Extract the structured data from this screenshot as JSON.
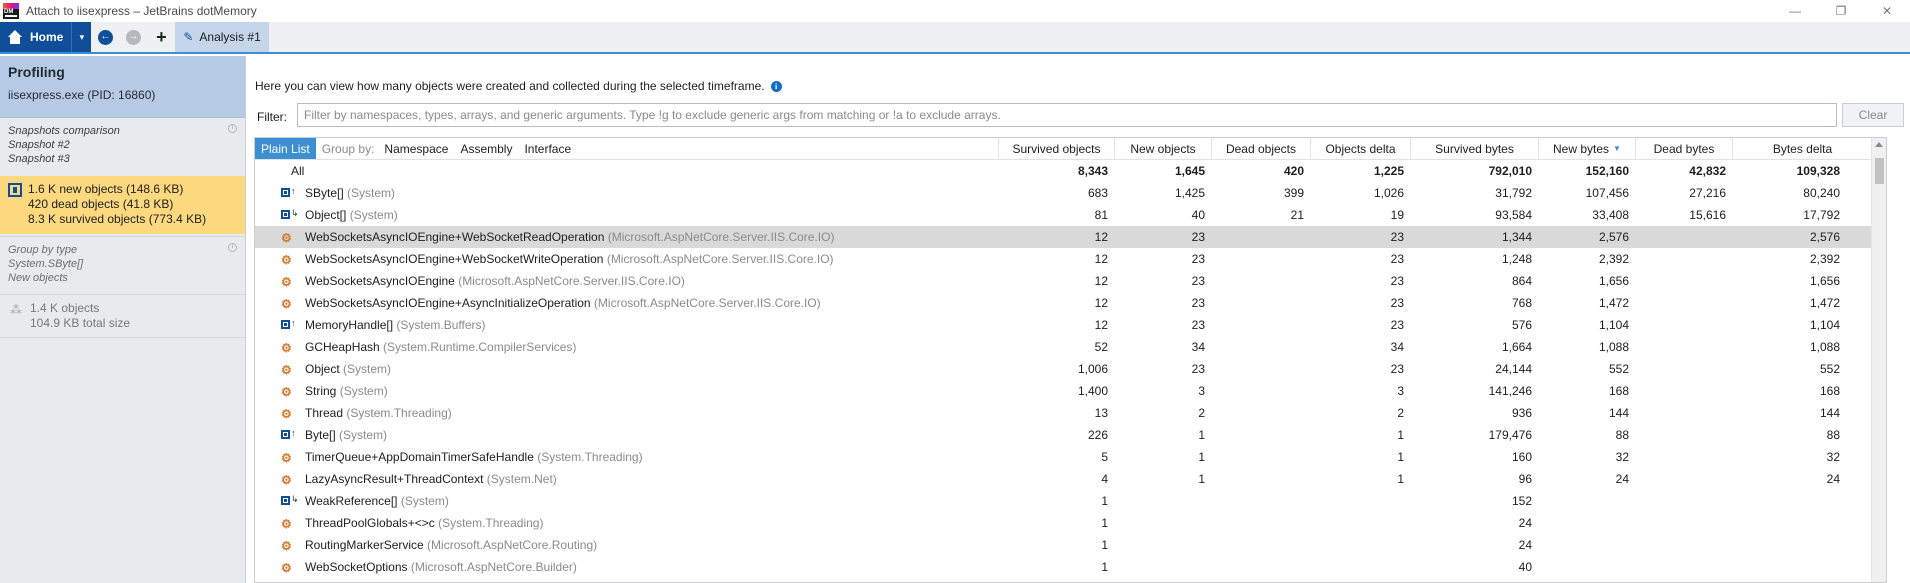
{
  "window": {
    "title": "Attach to iisexpress – JetBrains dotMemory",
    "logo_text": "DM",
    "controls": {
      "minimize": "—",
      "restore": "❐",
      "close": "✕"
    }
  },
  "toolbar": {
    "home_label": "Home",
    "dropdown_glyph": "▾",
    "back_glyph": "←",
    "forward_glyph": "→",
    "add_glyph": "+",
    "tab_label": "Analysis #1",
    "tab_icon_glyph": "✎"
  },
  "left_panel": {
    "profiling_title": "Profiling",
    "process": "iisexpress.exe (PID: 16860)",
    "comparison": [
      "Snapshots comparison",
      "Snapshot #2",
      "Snapshot #3"
    ],
    "summary": [
      "1.6 K new objects  (148.6 KB)",
      "420 dead objects  (41.8 KB)",
      "8.3 K survived objects  (773.4 KB)"
    ],
    "group_by": [
      "Group by type",
      "System.SByte[]",
      "New objects"
    ],
    "objects_count": "1.4 K  objects",
    "objects_size": "104.9 KB  total size",
    "info_glyph": "i"
  },
  "main": {
    "hint": "Here you can view how many objects were created and collected during the selected timeframe.",
    "hint_info_glyph": "i",
    "filter_label": "Filter:",
    "filter_placeholder": "Filter by namespaces, types, arrays, and generic arguments. Type !g to exclude generic args from matching or !a to exclude arrays.",
    "filter_value": "",
    "clear_label": "Clear"
  },
  "grid": {
    "group_tabs": {
      "plain_list": "Plain List",
      "group_by_label": "Group by:",
      "namespace": "Namespace",
      "assembly": "Assembly",
      "interface": "Interface"
    },
    "columns": [
      "Survived objects",
      "New objects",
      "Dead objects",
      "Objects delta",
      "Survived bytes",
      "New bytes",
      "Dead bytes",
      "Bytes delta"
    ],
    "sort_glyph": "▼",
    "total": {
      "name": "All",
      "survived_objects": "8,343",
      "new_objects": "1,645",
      "dead_objects": "420",
      "objects_delta": "1,225",
      "survived_bytes": "792,010",
      "new_bytes": "152,160",
      "dead_bytes": "42,832",
      "bytes_delta": "109,328"
    },
    "rows": [
      {
        "icon": "array-icon",
        "name": "SByte[]",
        "ns": " (System)",
        "survived_objects": "683",
        "new_objects": "1,425",
        "dead_objects": "399",
        "objects_delta": "1,026",
        "survived_bytes": "31,792",
        "new_bytes": "107,456",
        "dead_bytes": "27,216",
        "bytes_delta": "80,240"
      },
      {
        "icon": "class-array-icon",
        "name": "Object[]",
        "ns": " (System)",
        "survived_objects": "81",
        "new_objects": "40",
        "dead_objects": "21",
        "objects_delta": "19",
        "survived_bytes": "93,584",
        "new_bytes": "33,408",
        "dead_bytes": "15,616",
        "bytes_delta": "17,792"
      },
      {
        "icon": "class-icon",
        "name": "WebSocketsAsyncIOEngine+WebSocketReadOperation",
        "ns": " (Microsoft.AspNetCore.Server.IIS.Core.IO)",
        "survived_objects": "12",
        "new_objects": "23",
        "dead_objects": "",
        "objects_delta": "23",
        "survived_bytes": "1,344",
        "new_bytes": "2,576",
        "dead_bytes": "",
        "bytes_delta": "2,576",
        "selected": true
      },
      {
        "icon": "class-icon",
        "name": "WebSocketsAsyncIOEngine+WebSocketWriteOperation",
        "ns": " (Microsoft.AspNetCore.Server.IIS.Core.IO)",
        "survived_objects": "12",
        "new_objects": "23",
        "dead_objects": "",
        "objects_delta": "23",
        "survived_bytes": "1,248",
        "new_bytes": "2,392",
        "dead_bytes": "",
        "bytes_delta": "2,392"
      },
      {
        "icon": "class-icon",
        "name": "WebSocketsAsyncIOEngine",
        "ns": " (Microsoft.AspNetCore.Server.IIS.Core.IO)",
        "survived_objects": "12",
        "new_objects": "23",
        "dead_objects": "",
        "objects_delta": "23",
        "survived_bytes": "864",
        "new_bytes": "1,656",
        "dead_bytes": "",
        "bytes_delta": "1,656"
      },
      {
        "icon": "class-icon",
        "name": "WebSocketsAsyncIOEngine+AsyncInitializeOperation",
        "ns": " (Microsoft.AspNetCore.Server.IIS.Core.IO)",
        "survived_objects": "12",
        "new_objects": "23",
        "dead_objects": "",
        "objects_delta": "23",
        "survived_bytes": "768",
        "new_bytes": "1,472",
        "dead_bytes": "",
        "bytes_delta": "1,472"
      },
      {
        "icon": "array-icon",
        "name": "MemoryHandle[]",
        "ns": " (System.Buffers)",
        "survived_objects": "12",
        "new_objects": "23",
        "dead_objects": "",
        "objects_delta": "23",
        "survived_bytes": "576",
        "new_bytes": "1,104",
        "dead_bytes": "",
        "bytes_delta": "1,104"
      },
      {
        "icon": "class-icon",
        "name": "GCHeapHash",
        "ns": " (System.Runtime.CompilerServices)",
        "survived_objects": "52",
        "new_objects": "34",
        "dead_objects": "",
        "objects_delta": "34",
        "survived_bytes": "1,664",
        "new_bytes": "1,088",
        "dead_bytes": "",
        "bytes_delta": "1,088"
      },
      {
        "icon": "class-icon",
        "name": "Object",
        "ns": " (System)",
        "survived_objects": "1,006",
        "new_objects": "23",
        "dead_objects": "",
        "objects_delta": "23",
        "survived_bytes": "24,144",
        "new_bytes": "552",
        "dead_bytes": "",
        "bytes_delta": "552"
      },
      {
        "icon": "class-icon",
        "name": "String",
        "ns": " (System)",
        "survived_objects": "1,400",
        "new_objects": "3",
        "dead_objects": "",
        "objects_delta": "3",
        "survived_bytes": "141,246",
        "new_bytes": "168",
        "dead_bytes": "",
        "bytes_delta": "168"
      },
      {
        "icon": "class-icon",
        "name": "Thread",
        "ns": " (System.Threading)",
        "survived_objects": "13",
        "new_objects": "2",
        "dead_objects": "",
        "objects_delta": "2",
        "survived_bytes": "936",
        "new_bytes": "144",
        "dead_bytes": "",
        "bytes_delta": "144"
      },
      {
        "icon": "array-icon",
        "name": "Byte[]",
        "ns": " (System)",
        "survived_objects": "226",
        "new_objects": "1",
        "dead_objects": "",
        "objects_delta": "1",
        "survived_bytes": "179,476",
        "new_bytes": "88",
        "dead_bytes": "",
        "bytes_delta": "88"
      },
      {
        "icon": "class-icon",
        "name": "TimerQueue+AppDomainTimerSafeHandle",
        "ns": " (System.Threading)",
        "survived_objects": "5",
        "new_objects": "1",
        "dead_objects": "",
        "objects_delta": "1",
        "survived_bytes": "160",
        "new_bytes": "32",
        "dead_bytes": "",
        "bytes_delta": "32"
      },
      {
        "icon": "class-icon",
        "name": "LazyAsyncResult+ThreadContext",
        "ns": " (System.Net)",
        "survived_objects": "4",
        "new_objects": "1",
        "dead_objects": "",
        "objects_delta": "1",
        "survived_bytes": "96",
        "new_bytes": "24",
        "dead_bytes": "",
        "bytes_delta": "24"
      },
      {
        "icon": "class-array-icon",
        "name": "WeakReference[]",
        "ns": " (System)",
        "survived_objects": "1",
        "new_objects": "",
        "dead_objects": "",
        "objects_delta": "",
        "survived_bytes": "152",
        "new_bytes": "",
        "dead_bytes": "",
        "bytes_delta": ""
      },
      {
        "icon": "class-icon",
        "name": "ThreadPoolGlobals+<>c",
        "ns": " (System.Threading)",
        "survived_objects": "1",
        "new_objects": "",
        "dead_objects": "",
        "objects_delta": "",
        "survived_bytes": "24",
        "new_bytes": "",
        "dead_bytes": "",
        "bytes_delta": ""
      },
      {
        "icon": "class-icon",
        "name": "RoutingMarkerService",
        "ns": " (Microsoft.AspNetCore.Routing)",
        "survived_objects": "1",
        "new_objects": "",
        "dead_objects": "",
        "objects_delta": "",
        "survived_bytes": "24",
        "new_bytes": "",
        "dead_bytes": "",
        "bytes_delta": ""
      },
      {
        "icon": "class-icon",
        "name": "WebSocketOptions",
        "ns": " (Microsoft.AspNetCore.Builder)",
        "survived_objects": "1",
        "new_objects": "",
        "dead_objects": "",
        "objects_delta": "",
        "survived_bytes": "40",
        "new_bytes": "",
        "dead_bytes": "",
        "bytes_delta": ""
      }
    ]
  },
  "colors": {
    "accent": "#3d8fd1",
    "brand": "#0f4e99",
    "selected_row": "#d9d9d9",
    "highlight_card": "#fcd97e",
    "type_icon": "#d07a2a"
  }
}
